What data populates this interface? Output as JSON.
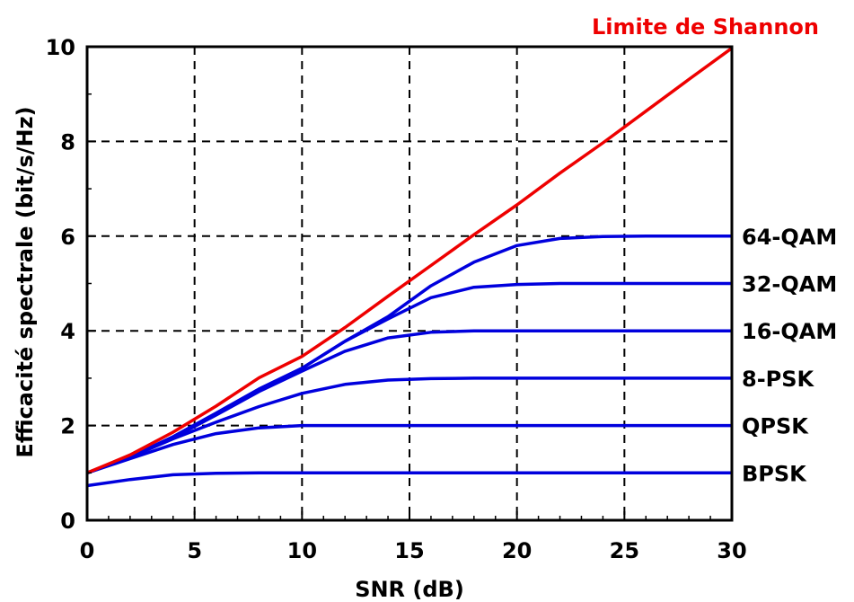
{
  "chart_data": {
    "type": "line",
    "title": "",
    "xlabel": "SNR (dB)",
    "ylabel": "Efficacité spectrale (bit/s/Hz)",
    "xlim": [
      0,
      30
    ],
    "ylim": [
      0,
      10
    ],
    "xticks": [
      "0",
      "5",
      "10",
      "15",
      "20",
      "25",
      "30"
    ],
    "yticks": [
      "0",
      "2",
      "4",
      "6",
      "8",
      "10"
    ],
    "grid": "dashed black, every 5 dB on x and every 2 bit/s/Hz on y",
    "colors": {
      "shannon": "#ee0000",
      "modulation": "#0000dd",
      "grid": "#000000"
    },
    "x": [
      0,
      2,
      4,
      6,
      8,
      10,
      12,
      14,
      16,
      18,
      20,
      22,
      24,
      26,
      28,
      30
    ],
    "series": [
      {
        "name": "Limite de Shannon",
        "color": "#ee0000",
        "label_position": "top-right",
        "values": [
          1.0,
          1.38,
          1.86,
          2.41,
          3.01,
          3.46,
          4.07,
          4.73,
          5.38,
          6.03,
          6.66,
          7.33,
          7.97,
          8.64,
          9.31,
          9.97
        ]
      },
      {
        "name": "64-QAM",
        "color": "#0000dd",
        "label_position": "right",
        "values": [
          1.0,
          1.34,
          1.76,
          2.26,
          2.77,
          3.21,
          3.78,
          4.3,
          4.95,
          5.45,
          5.8,
          5.95,
          5.99,
          6.0,
          6.0,
          6.0
        ]
      },
      {
        "name": "32-QAM",
        "color": "#0000dd",
        "label_position": "right",
        "values": [
          1.0,
          1.34,
          1.76,
          2.26,
          2.77,
          3.21,
          3.78,
          4.25,
          4.7,
          4.92,
          4.98,
          5.0,
          5.0,
          5.0,
          5.0,
          5.0
        ]
      },
      {
        "name": "16-QAM",
        "color": "#0000dd",
        "label_position": "right",
        "values": [
          1.0,
          1.34,
          1.74,
          2.22,
          2.72,
          3.15,
          3.57,
          3.85,
          3.97,
          4.0,
          4.0,
          4.0,
          4.0,
          4.0,
          4.0,
          4.0
        ]
      },
      {
        "name": "8-PSK",
        "color": "#0000dd",
        "label_position": "right",
        "values": [
          1.0,
          1.33,
          1.72,
          2.07,
          2.4,
          2.68,
          2.87,
          2.96,
          2.99,
          3.0,
          3.0,
          3.0,
          3.0,
          3.0,
          3.0,
          3.0
        ]
      },
      {
        "name": "QPSK",
        "color": "#0000dd",
        "label_position": "right",
        "values": [
          1.0,
          1.3,
          1.6,
          1.83,
          1.95,
          2.0,
          2.0,
          2.0,
          2.0,
          2.0,
          2.0,
          2.0,
          2.0,
          2.0,
          2.0,
          2.0
        ]
      },
      {
        "name": "BPSK",
        "color": "#0000dd",
        "label_position": "right",
        "values": [
          0.73,
          0.86,
          0.96,
          0.99,
          1.0,
          1.0,
          1.0,
          1.0,
          1.0,
          1.0,
          1.0,
          1.0,
          1.0,
          1.0,
          1.0,
          1.0
        ]
      }
    ]
  }
}
